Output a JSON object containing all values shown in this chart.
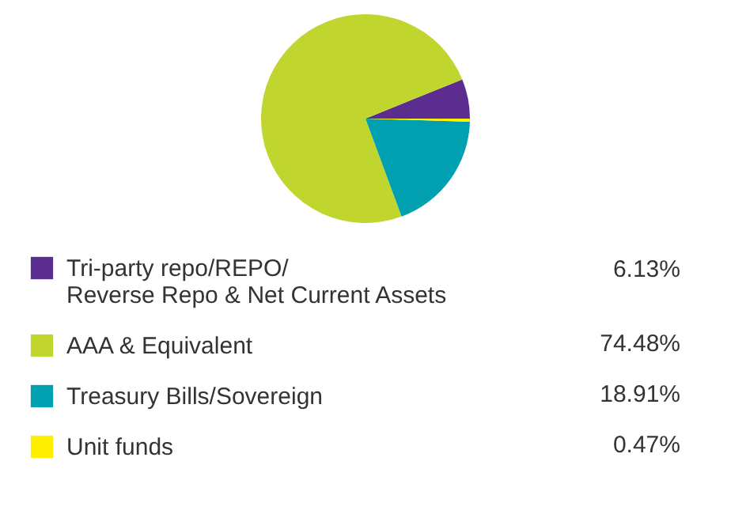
{
  "chart_data": {
    "type": "pie",
    "categories": [
      "Tri-party repo/REPO/ Reverse Repo & Net Current Assets",
      "AAA & Equivalent",
      "Treasury Bills/Sovereign",
      "Unit funds"
    ],
    "values": [
      6.13,
      74.48,
      18.91,
      0.47
    ],
    "colors": [
      "#5b2d8e",
      "#c0d62f",
      "#00a0b0",
      "#ffee00"
    ],
    "value_labels": [
      "6.13%",
      "74.48%",
      "18.91%",
      "0.47%"
    ],
    "legend": "bottom"
  }
}
